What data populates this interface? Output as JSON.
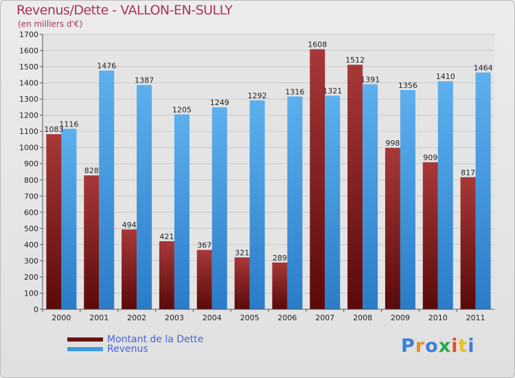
{
  "chart_data": {
    "type": "bar",
    "title": "Revenus/Dette - VALLON-EN-SULLY",
    "subtitle": "(en milliers d'€)",
    "categories": [
      "2000",
      "2001",
      "2002",
      "2003",
      "2004",
      "2005",
      "2006",
      "2007",
      "2008",
      "2009",
      "2010",
      "2011"
    ],
    "series": [
      {
        "name": "Montant de la Dette",
        "color": "#7a1a1a",
        "values": [
          1083,
          828,
          494,
          421,
          367,
          321,
          289,
          1608,
          1512,
          998,
          909,
          817
        ]
      },
      {
        "name": "Revenus",
        "color": "#3d9ae0",
        "values": [
          1116,
          1476,
          1387,
          1205,
          1249,
          1292,
          1316,
          1321,
          1391,
          1356,
          1410,
          1464
        ]
      }
    ],
    "ylim": [
      0,
      1700
    ],
    "yticks": [
      0,
      100,
      200,
      300,
      400,
      500,
      600,
      700,
      800,
      900,
      1000,
      1100,
      1200,
      1300,
      1400,
      1500,
      1600,
      1700
    ],
    "xlabel": "",
    "ylabel": "",
    "grid": true,
    "legend": "bottom-left"
  },
  "logo": {
    "text": "Proxiti",
    "colors": [
      "#3a7fd8",
      "#e8902a",
      "#3a7fd8",
      "#2aa84a",
      "#e84a2a",
      "#e8c02a",
      "#3a7fd8"
    ]
  }
}
